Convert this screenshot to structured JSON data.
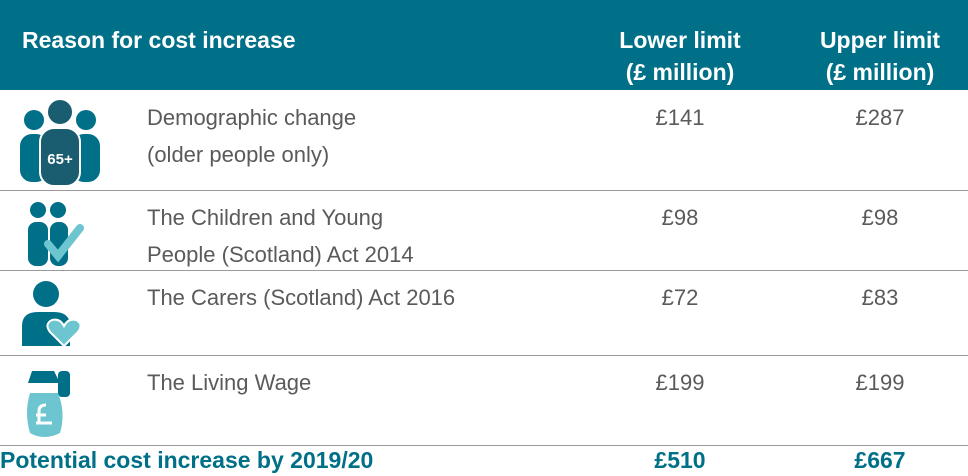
{
  "table": {
    "header": [
      [
        "Reason for cost increase"
      ],
      [
        "Lower limit",
        "(£ million)"
      ],
      [
        "Upper limit",
        "(£ million)"
      ]
    ],
    "icon_label": "65+",
    "rows": [
      {
        "reason": [
          "Demographic change",
          "(older people only)"
        ],
        "lower": "£141",
        "upper": "£287"
      },
      {
        "reason": [
          "The Children and Young",
          "People (Scotland) Act 2014"
        ],
        "lower": "£98",
        "upper": "£98"
      },
      {
        "reason": [
          "The Carers (Scotland) Act 2016"
        ],
        "lower": "£72",
        "upper": "£83"
      },
      {
        "reason": [
          "The Living Wage"
        ],
        "lower": "£199",
        "upper": "£199"
      }
    ],
    "total": {
      "label": "Potential cost increase by 2019/20",
      "lower": "£510",
      "upper": "£667"
    }
  }
}
